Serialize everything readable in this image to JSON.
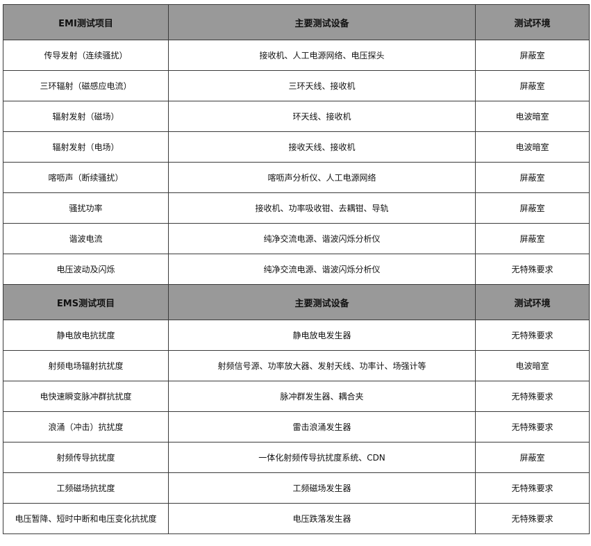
{
  "emi": {
    "headers": [
      "EMI测试项目",
      "主要测试设备",
      "测试环境"
    ],
    "rows": [
      [
        "传导发射（连续骚扰）",
        "接收机、人工电源网络、电压探头",
        "屏蔽室"
      ],
      [
        "三环辐射（磁感应电流）",
        "三环天线、接收机",
        "屏蔽室"
      ],
      [
        "辐射发射（磁场）",
        "环天线、接收机",
        "电波暗室"
      ],
      [
        "辐射发射（电场）",
        "接收天线、接收机",
        "电波暗室"
      ],
      [
        "喀呖声（断续骚扰）",
        "喀呖声分析仪、人工电源网络",
        "屏蔽室"
      ],
      [
        "骚扰功率",
        "接收机、功率吸收钳、去耦钳、导轨",
        "屏蔽室"
      ],
      [
        "谐波电流",
        "纯净交流电源、谐波闪烁分析仪",
        "屏蔽室"
      ],
      [
        "电压波动及闪烁",
        "纯净交流电源、谐波闪烁分析仪",
        "无特殊要求"
      ]
    ]
  },
  "ems": {
    "headers": [
      "EMS测试项目",
      "主要测试设备",
      "测试环境"
    ],
    "rows": [
      [
        "静电放电抗扰度",
        "静电放电发生器",
        "无特殊要求"
      ],
      [
        "射频电场辐射抗扰度",
        "射频信号源、功率放大器、发射天线、功率计、场强计等",
        "电波暗室"
      ],
      [
        "电快速瞬变脉冲群抗扰度",
        "脉冲群发生器、耦合夹",
        "无特殊要求"
      ],
      [
        "浪涌（冲击）抗扰度",
        "雷击浪涌发生器",
        "无特殊要求"
      ],
      [
        "射频传导抗扰度",
        "一体化射频传导抗扰度系统、CDN",
        "屏蔽室"
      ],
      [
        "工频磁场抗扰度",
        "工频磁场发生器",
        "无特殊要求"
      ],
      [
        "电压暂降、短时中断和电压变化抗扰度",
        "电压跌落发生器",
        "无特殊要求"
      ]
    ]
  },
  "colors": {
    "header_bg": "#999999",
    "border": "#3a3a3a"
  }
}
